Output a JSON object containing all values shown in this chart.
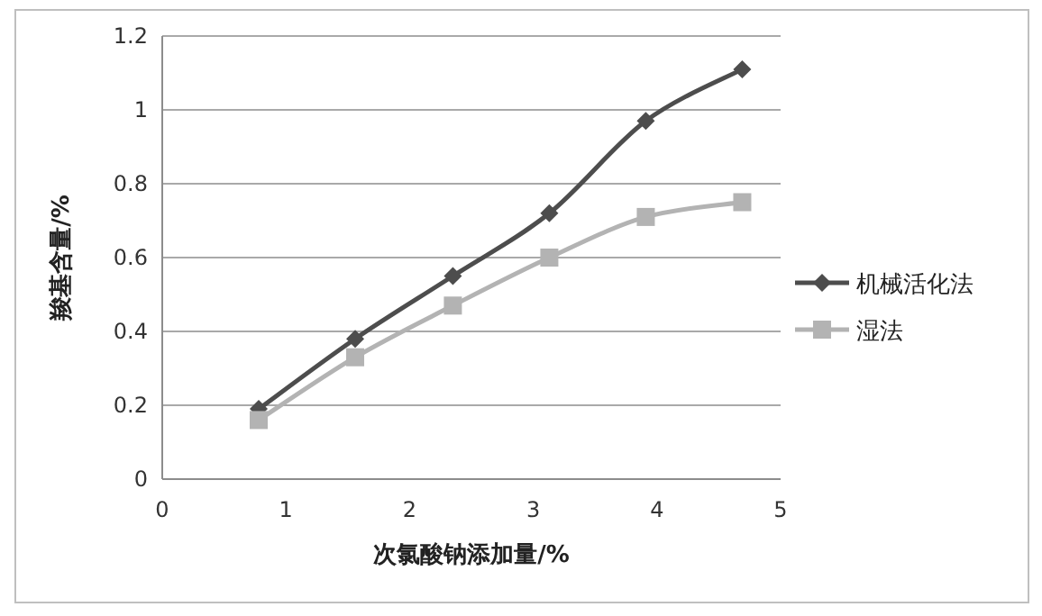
{
  "chart_data": {
    "type": "line",
    "xlabel": "次氯酸钠添加量/%",
    "ylabel": "羧基含量/%",
    "xlim": [
      0,
      5
    ],
    "xticks": [
      0,
      1,
      2,
      3,
      4,
      5
    ],
    "ylim": [
      0,
      1.2
    ],
    "yticks": [
      0,
      {
        "value": 0.2,
        "label": "0.2"
      },
      {
        "value": 0.4,
        "label": "0.4"
      },
      {
        "value": 0.6,
        "label": "0.6"
      },
      {
        "value": 0.8,
        "label": "0.8"
      },
      1,
      {
        "value": 1.2,
        "label": "1.2"
      }
    ],
    "grid": "y",
    "legend": "right",
    "series": [
      {
        "name": "机械活化法",
        "color": "#4d4d4d",
        "marker": "diamond",
        "x": [
          0.78,
          1.56,
          2.35,
          3.13,
          3.91,
          4.69
        ],
        "values": [
          0.19,
          0.38,
          0.55,
          0.72,
          0.97,
          1.11
        ]
      },
      {
        "name": "湿法",
        "color": "#b3b3b3",
        "marker": "square",
        "x": [
          0.78,
          1.56,
          2.35,
          3.13,
          3.91,
          4.69
        ],
        "values": [
          0.16,
          0.33,
          0.47,
          0.6,
          0.71,
          0.75
        ]
      }
    ]
  }
}
